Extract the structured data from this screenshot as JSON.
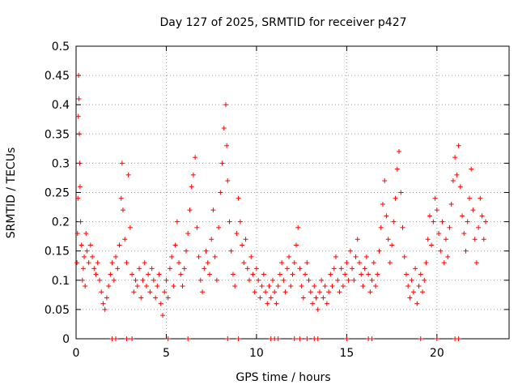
{
  "chart_data": {
    "type": "scatter",
    "title": "Day 127 of 2025, SRMTID for receiver p427",
    "xlabel": "GPS time / hours",
    "ylabel": "SRMTID / TECUs",
    "xlim": [
      0,
      24.0
    ],
    "ylim": [
      0,
      0.5
    ],
    "xticks": [
      0,
      5,
      10,
      15,
      20
    ],
    "xtick_labels": [
      "0",
      "5",
      "10",
      "15",
      "20"
    ],
    "yticks": [
      0,
      0.05,
      0.1,
      0.15,
      0.2,
      0.25,
      0.3,
      0.35,
      0.4,
      0.45,
      0.5
    ],
    "ytick_labels": [
      "0",
      "0.05",
      "0.1",
      "0.15",
      "0.2",
      "0.25",
      "0.3",
      "0.35",
      "0.4",
      "0.45",
      "0.5"
    ],
    "grid": true,
    "marker": "+",
    "color": "#ff0000",
    "series": [
      {
        "name": "SRMTID",
        "points": [
          [
            0.05,
            0.13
          ],
          [
            0.08,
            0.18
          ],
          [
            0.1,
            0.24
          ],
          [
            0.12,
            0.38
          ],
          [
            0.14,
            0.45
          ],
          [
            0.16,
            0.41
          ],
          [
            0.18,
            0.35
          ],
          [
            0.2,
            0.3
          ],
          [
            0.22,
            0.26
          ],
          [
            0.25,
            0.2
          ],
          [
            0.3,
            0.16
          ],
          [
            0.35,
            0.1
          ],
          [
            0.4,
            0.12
          ],
          [
            0.45,
            0.14
          ],
          [
            0.5,
            0.09
          ],
          [
            0.55,
            0.18
          ],
          [
            0.6,
            0.15
          ],
          [
            0.7,
            0.13
          ],
          [
            0.8,
            0.16
          ],
          [
            0.9,
            0.14
          ],
          [
            1.0,
            0.12
          ],
          [
            1.1,
            0.11
          ],
          [
            1.2,
            0.13
          ],
          [
            1.3,
            0.1
          ],
          [
            1.4,
            0.08
          ],
          [
            1.5,
            0.06
          ],
          [
            1.6,
            0.05
          ],
          [
            1.7,
            0.07
          ],
          [
            1.8,
            0.09
          ],
          [
            1.9,
            0.11
          ],
          [
            2.0,
            0.13
          ],
          [
            2.1,
            0.1
          ],
          [
            2.2,
            0.14
          ],
          [
            2.3,
            0.12
          ],
          [
            2.4,
            0.16
          ],
          [
            2.5,
            0.24
          ],
          [
            2.55,
            0.3
          ],
          [
            2.6,
            0.22
          ],
          [
            2.7,
            0.17
          ],
          [
            2.8,
            0.13
          ],
          [
            2.9,
            0.28
          ],
          [
            3.0,
            0.19
          ],
          [
            3.1,
            0.11
          ],
          [
            3.2,
            0.08
          ],
          [
            3.3,
            0.1
          ],
          [
            3.4,
            0.09
          ],
          [
            3.5,
            0.12
          ],
          [
            3.6,
            0.07
          ],
          [
            3.7,
            0.1
          ],
          [
            3.8,
            0.13
          ],
          [
            3.9,
            0.09
          ],
          [
            4.0,
            0.11
          ],
          [
            4.1,
            0.08
          ],
          [
            4.2,
            0.12
          ],
          [
            4.3,
            0.1
          ],
          [
            4.4,
            0.07
          ],
          [
            4.5,
            0.09
          ],
          [
            4.6,
            0.11
          ],
          [
            4.7,
            0.06
          ],
          [
            4.8,
            0.04
          ],
          [
            4.9,
            0.08
          ],
          [
            5.0,
            0.1
          ],
          [
            5.1,
            0.07
          ],
          [
            5.2,
            0.12
          ],
          [
            5.3,
            0.14
          ],
          [
            5.4,
            0.09
          ],
          [
            5.5,
            0.16
          ],
          [
            5.6,
            0.2
          ],
          [
            5.7,
            0.13
          ],
          [
            5.8,
            0.11
          ],
          [
            5.9,
            0.09
          ],
          [
            6.0,
            0.12
          ],
          [
            6.1,
            0.15
          ],
          [
            6.2,
            0.18
          ],
          [
            6.3,
            0.22
          ],
          [
            6.4,
            0.26
          ],
          [
            6.5,
            0.28
          ],
          [
            6.6,
            0.31
          ],
          [
            6.7,
            0.19
          ],
          [
            6.8,
            0.14
          ],
          [
            6.9,
            0.1
          ],
          [
            7.0,
            0.08
          ],
          [
            7.1,
            0.12
          ],
          [
            7.2,
            0.15
          ],
          [
            7.3,
            0.13
          ],
          [
            7.4,
            0.11
          ],
          [
            7.5,
            0.17
          ],
          [
            7.6,
            0.22
          ],
          [
            7.7,
            0.14
          ],
          [
            7.8,
            0.1
          ],
          [
            7.9,
            0.19
          ],
          [
            8.0,
            0.25
          ],
          [
            8.1,
            0.3
          ],
          [
            8.2,
            0.36
          ],
          [
            8.3,
            0.4
          ],
          [
            8.35,
            0.33
          ],
          [
            8.4,
            0.27
          ],
          [
            8.5,
            0.2
          ],
          [
            8.6,
            0.15
          ],
          [
            8.7,
            0.11
          ],
          [
            8.8,
            0.09
          ],
          [
            8.9,
            0.18
          ],
          [
            9.0,
            0.24
          ],
          [
            9.1,
            0.2
          ],
          [
            9.2,
            0.16
          ],
          [
            9.3,
            0.13
          ],
          [
            9.4,
            0.17
          ],
          [
            9.5,
            0.12
          ],
          [
            9.6,
            0.1
          ],
          [
            9.7,
            0.14
          ],
          [
            9.8,
            0.11
          ],
          [
            9.9,
            0.08
          ],
          [
            10.0,
            0.12
          ],
          [
            10.1,
            0.1
          ],
          [
            10.2,
            0.07
          ],
          [
            10.3,
            0.09
          ],
          [
            10.4,
            0.11
          ],
          [
            10.5,
            0.08
          ],
          [
            10.6,
            0.06
          ],
          [
            10.7,
            0.09
          ],
          [
            10.8,
            0.07
          ],
          [
            10.9,
            0.1
          ],
          [
            11.0,
            0.08
          ],
          [
            11.1,
            0.06
          ],
          [
            11.2,
            0.09
          ],
          [
            11.3,
            0.11
          ],
          [
            11.4,
            0.13
          ],
          [
            11.5,
            0.1
          ],
          [
            11.6,
            0.08
          ],
          [
            11.7,
            0.12
          ],
          [
            11.8,
            0.14
          ],
          [
            11.9,
            0.09
          ],
          [
            12.0,
            0.11
          ],
          [
            12.1,
            0.13
          ],
          [
            12.2,
            0.16
          ],
          [
            12.3,
            0.19
          ],
          [
            12.4,
            0.12
          ],
          [
            12.5,
            0.09
          ],
          [
            12.6,
            0.07
          ],
          [
            12.7,
            0.11
          ],
          [
            12.8,
            0.13
          ],
          [
            12.9,
            0.1
          ],
          [
            13.0,
            0.08
          ],
          [
            13.1,
            0.06
          ],
          [
            13.2,
            0.09
          ],
          [
            13.3,
            0.07
          ],
          [
            13.4,
            0.05
          ],
          [
            13.5,
            0.08
          ],
          [
            13.6,
            0.1
          ],
          [
            13.7,
            0.07
          ],
          [
            13.8,
            0.09
          ],
          [
            13.9,
            0.06
          ],
          [
            14.0,
            0.08
          ],
          [
            14.1,
            0.11
          ],
          [
            14.2,
            0.09
          ],
          [
            14.3,
            0.12
          ],
          [
            14.4,
            0.14
          ],
          [
            14.5,
            0.1
          ],
          [
            14.6,
            0.08
          ],
          [
            14.7,
            0.12
          ],
          [
            14.8,
            0.09
          ],
          [
            14.9,
            0.11
          ],
          [
            15.0,
            0.13
          ],
          [
            15.1,
            0.1
          ],
          [
            15.2,
            0.15
          ],
          [
            15.3,
            0.12
          ],
          [
            15.4,
            0.1
          ],
          [
            15.5,
            0.14
          ],
          [
            15.6,
            0.17
          ],
          [
            15.7,
            0.13
          ],
          [
            15.8,
            0.11
          ],
          [
            15.9,
            0.09
          ],
          [
            16.0,
            0.12
          ],
          [
            16.1,
            0.14
          ],
          [
            16.2,
            0.11
          ],
          [
            16.3,
            0.08
          ],
          [
            16.4,
            0.1
          ],
          [
            16.5,
            0.13
          ],
          [
            16.6,
            0.09
          ],
          [
            16.7,
            0.11
          ],
          [
            16.8,
            0.15
          ],
          [
            16.9,
            0.19
          ],
          [
            17.0,
            0.23
          ],
          [
            17.1,
            0.27
          ],
          [
            17.2,
            0.21
          ],
          [
            17.3,
            0.17
          ],
          [
            17.4,
            0.13
          ],
          [
            17.5,
            0.16
          ],
          [
            17.6,
            0.2
          ],
          [
            17.7,
            0.24
          ],
          [
            17.8,
            0.29
          ],
          [
            17.9,
            0.32
          ],
          [
            18.0,
            0.25
          ],
          [
            18.1,
            0.19
          ],
          [
            18.2,
            0.14
          ],
          [
            18.3,
            0.11
          ],
          [
            18.4,
            0.09
          ],
          [
            18.5,
            0.07
          ],
          [
            18.6,
            0.1
          ],
          [
            18.7,
            0.08
          ],
          [
            18.8,
            0.12
          ],
          [
            18.9,
            0.06
          ],
          [
            19.0,
            0.09
          ],
          [
            19.1,
            0.11
          ],
          [
            19.2,
            0.08
          ],
          [
            19.3,
            0.1
          ],
          [
            19.4,
            0.13
          ],
          [
            19.5,
            0.17
          ],
          [
            19.6,
            0.21
          ],
          [
            19.7,
            0.16
          ],
          [
            19.8,
            0.2
          ],
          [
            19.9,
            0.24
          ],
          [
            20.0,
            0.22
          ],
          [
            20.1,
            0.18
          ],
          [
            20.2,
            0.15
          ],
          [
            20.3,
            0.2
          ],
          [
            20.4,
            0.13
          ],
          [
            20.5,
            0.17
          ],
          [
            20.6,
            0.14
          ],
          [
            20.7,
            0.19
          ],
          [
            20.8,
            0.23
          ],
          [
            20.9,
            0.27
          ],
          [
            21.0,
            0.31
          ],
          [
            21.1,
            0.28
          ],
          [
            21.2,
            0.33
          ],
          [
            21.3,
            0.26
          ],
          [
            21.4,
            0.21
          ],
          [
            21.5,
            0.18
          ],
          [
            21.6,
            0.15
          ],
          [
            21.7,
            0.2
          ],
          [
            21.8,
            0.24
          ],
          [
            21.9,
            0.29
          ],
          [
            22.0,
            0.22
          ],
          [
            22.1,
            0.17
          ],
          [
            22.2,
            0.13
          ],
          [
            22.3,
            0.19
          ],
          [
            22.4,
            0.24
          ],
          [
            22.5,
            0.21
          ],
          [
            22.6,
            0.17
          ],
          [
            22.7,
            0.2
          ]
        ]
      }
    ],
    "baseline_marks_x": [
      2.0,
      2.2,
      2.8,
      3.1,
      5.1,
      6.2,
      8.4,
      9.0,
      10.8,
      11.0,
      11.2,
      12.1,
      12.4,
      12.8,
      13.2,
      13.4,
      15.0,
      16.2,
      16.4,
      19.1,
      20.0,
      21.0,
      21.2
    ]
  }
}
